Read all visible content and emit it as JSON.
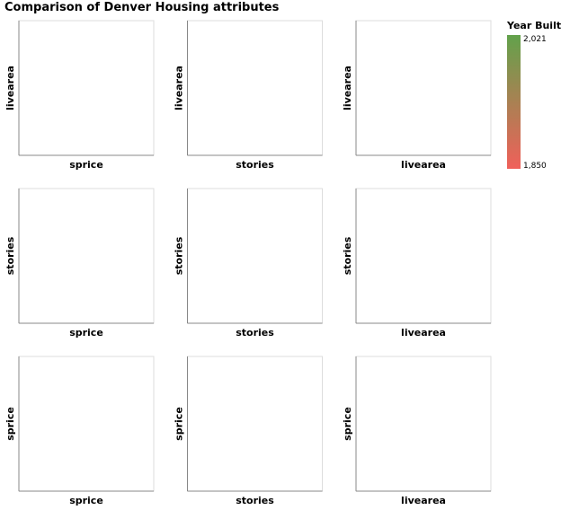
{
  "chart_data": {
    "type": "scatter",
    "title": "Comparison of Denver Housing attributes",
    "columns": [
      "sprice",
      "stories",
      "livearea"
    ],
    "rows": [
      "livearea",
      "stories",
      "sprice"
    ],
    "points": [],
    "legend": {
      "title": "Year Built",
      "min_label": "1,850",
      "max_label": "2,021",
      "min": 1850,
      "max": 2021,
      "color_low": "#f0605a",
      "color_high": "#62a24b",
      "placement": "top-right"
    },
    "grid": false
  }
}
